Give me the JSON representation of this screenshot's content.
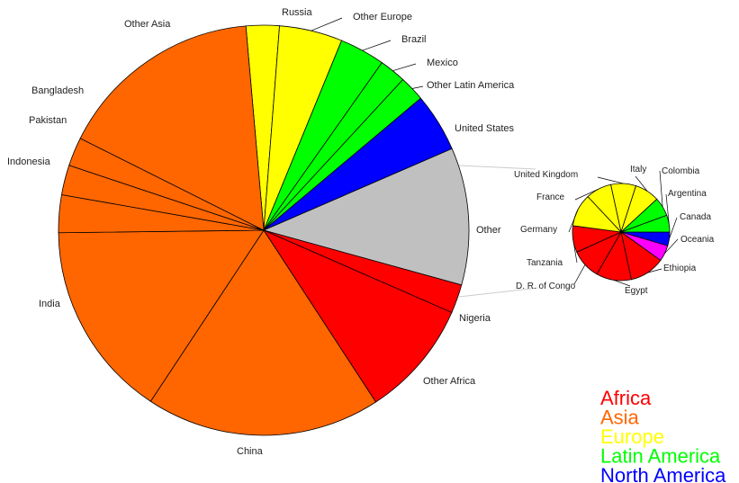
{
  "colors": {
    "Africa": "#ff0000",
    "Asia": "#ff6600",
    "Europe": "#ffff00",
    "Latin America": "#00ff00",
    "North America": "#0000ff",
    "Oceania": "#ff00ff",
    "Other": "#c0c0c0"
  },
  "chart_data": [
    {
      "type": "pie",
      "start_angle_deg": 95,
      "direction": "clockwise",
      "slices": [
        {
          "label": "Russia",
          "value": 3.0,
          "group": "Europe"
        },
        {
          "label": "Other Europe",
          "value": 5.7,
          "group": "Europe"
        },
        {
          "label": "Brazil",
          "value": 4.1,
          "group": "Latin America"
        },
        {
          "label": "Mexico",
          "value": 2.4,
          "group": "Latin America"
        },
        {
          "label": "Other Latin America",
          "value": 2.3,
          "group": "Latin America"
        },
        {
          "label": "United States",
          "value": 5.3,
          "group": "North America"
        },
        {
          "label": "Other",
          "value": 12.4,
          "group": "Other"
        },
        {
          "label": "Nigeria",
          "value": 2.6,
          "group": "Africa"
        },
        {
          "label": "Other Africa",
          "value": 10.6,
          "group": "Africa"
        },
        {
          "label": "China",
          "value": 21.2,
          "group": "Asia"
        },
        {
          "label": "India",
          "value": 17.8,
          "group": "Asia"
        },
        {
          "label": "Indonesia",
          "value": 3.4,
          "group": "Asia"
        },
        {
          "label": "Pakistan",
          "value": 2.7,
          "group": "Asia"
        },
        {
          "label": "Bangladesh",
          "value": 2.6,
          "group": "Asia"
        },
        {
          "label": "Other Asia",
          "value": 18.6,
          "group": "Asia"
        }
      ]
    },
    {
      "type": "pie",
      "start_angle_deg": 0,
      "direction": "clockwise",
      "slices": [
        {
          "label": "Canada",
          "value": 3.5,
          "group": "North America"
        },
        {
          "label": "Oceania",
          "value": 4.1,
          "group": "Oceania"
        },
        {
          "label": "Ethiopia",
          "value": 9.0,
          "group": "Africa"
        },
        {
          "label": "Egypt",
          "value": 9.0,
          "group": "Africa"
        },
        {
          "label": "D. R. of Congo",
          "value": 7.6,
          "group": "Africa"
        },
        {
          "label": "Tanzania",
          "value": 6.8,
          "group": "Africa"
        },
        {
          "label": "Germany",
          "value": 8.4,
          "group": "Europe"
        },
        {
          "label": "France",
          "value": 6.6,
          "group": "Europe"
        },
        {
          "label": "United Kingdom",
          "value": 6.4,
          "group": "Europe"
        },
        {
          "label": "Italy",
          "value": 6.3,
          "group": "Europe"
        },
        {
          "label": "Colombia",
          "value": 4.8,
          "group": "Latin America"
        },
        {
          "label": "Argentina",
          "value": 4.3,
          "group": "Latin America"
        }
      ]
    }
  ],
  "legend": {
    "position": "bottom-right",
    "entries": [
      "Africa",
      "Asia",
      "Europe",
      "Latin America",
      "North America"
    ]
  }
}
